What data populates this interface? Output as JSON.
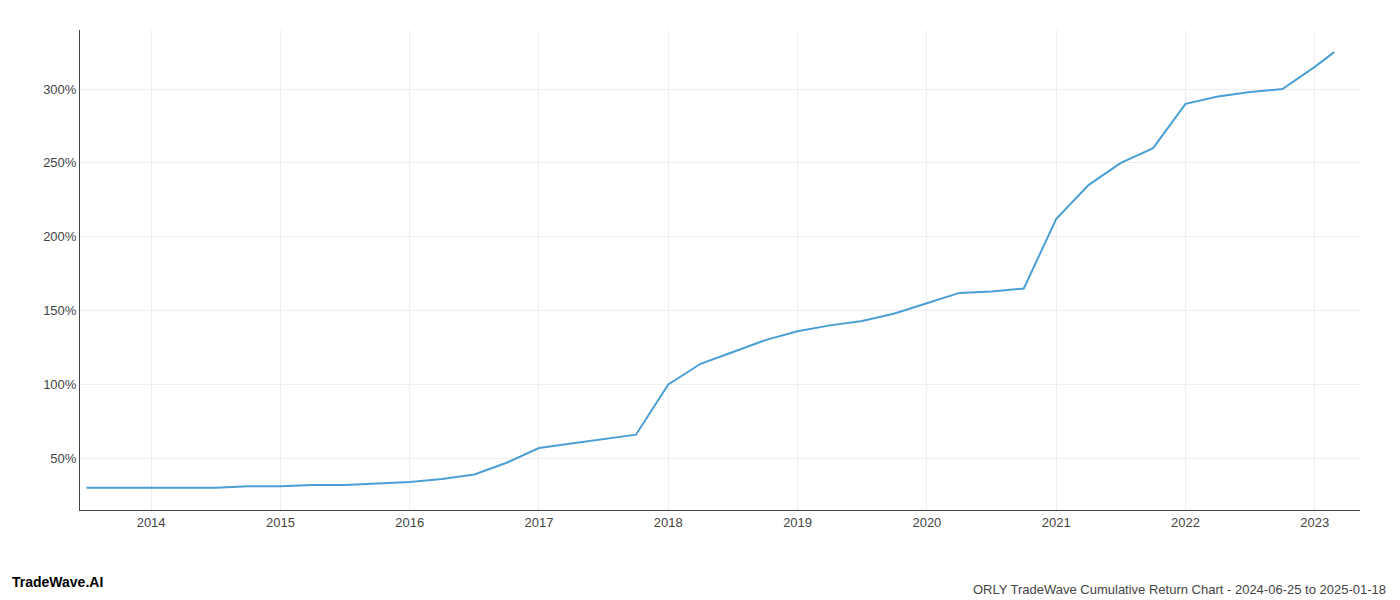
{
  "chart_data": {
    "type": "line",
    "title": "ORLY TradeWave Cumulative Return Chart - 2024-06-25 to 2025-01-18",
    "annotations": [
      "TradeWave.AI"
    ],
    "x": [
      2013.5,
      2013.75,
      2014.0,
      2014.25,
      2014.5,
      2014.75,
      2015.0,
      2015.25,
      2015.5,
      2015.75,
      2016.0,
      2016.25,
      2016.5,
      2016.75,
      2017.0,
      2017.25,
      2017.5,
      2017.75,
      2018.0,
      2018.25,
      2018.5,
      2018.75,
      2019.0,
      2019.25,
      2019.5,
      2019.75,
      2020.0,
      2020.25,
      2020.5,
      2020.75,
      2021.0,
      2021.25,
      2021.5,
      2021.75,
      2022.0,
      2022.25,
      2022.5,
      2022.75,
      2023.0,
      2023.15
    ],
    "values": [
      30,
      30,
      30,
      30,
      30,
      31,
      31,
      32,
      32,
      33,
      34,
      36,
      39,
      47,
      57,
      60,
      63,
      66,
      100,
      114,
      122,
      130,
      136,
      140,
      143,
      148,
      155,
      162,
      163,
      165,
      212,
      235,
      250,
      260,
      290,
      295,
      298,
      300,
      315,
      325
    ],
    "color": "#4a9fd4",
    "xlim": [
      2013.45,
      2023.35
    ],
    "xticks": [
      2014,
      2015,
      2016,
      2017,
      2018,
      2019,
      2020,
      2021,
      2022,
      2023
    ],
    "ylim": [
      15,
      340
    ],
    "yticks": [
      {
        "value": 50,
        "label": "50%"
      },
      {
        "value": 100,
        "label": "100%"
      },
      {
        "value": 150,
        "label": "150%"
      },
      {
        "value": 200,
        "label": "200%"
      },
      {
        "value": 250,
        "label": "250%"
      },
      {
        "value": 300,
        "label": "300%"
      }
    ],
    "grid": true
  }
}
